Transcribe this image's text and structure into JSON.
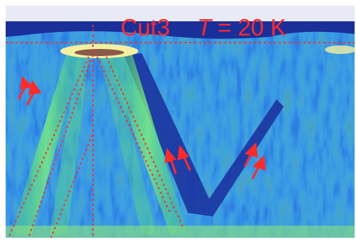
{
  "label": {
    "cut": "Cut3",
    "symbol": "T",
    "rest": "= 20 K"
  }
}
